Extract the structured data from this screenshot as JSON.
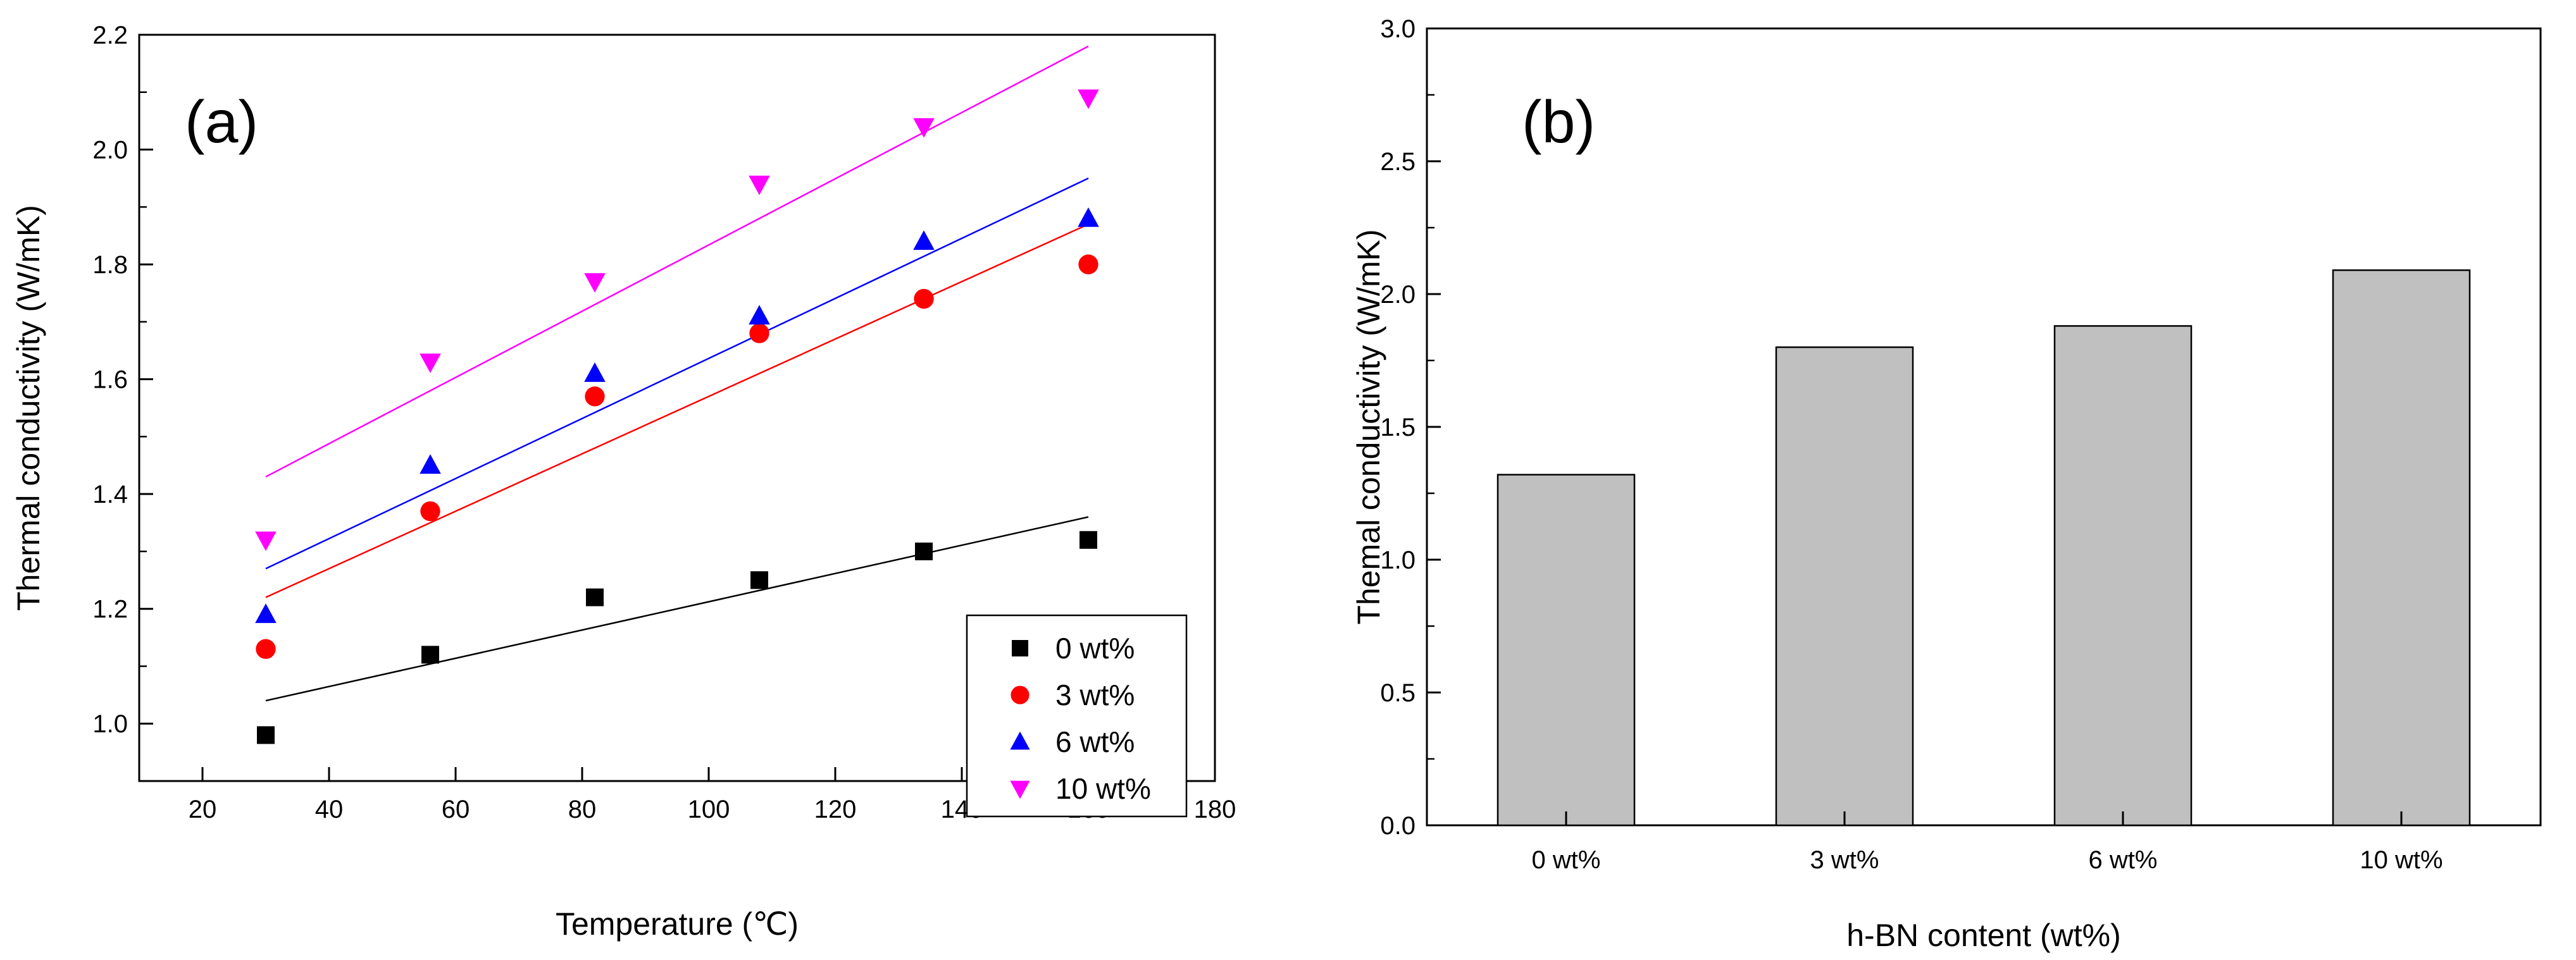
{
  "chart_data": [
    {
      "type": "scatter",
      "panel_label": "(a)",
      "title": "",
      "xlabel": "Temperature (℃)",
      "ylabel": "Thermal conductivity (W/mK)",
      "xlim": [
        10,
        180
      ],
      "ylim": [
        0.9,
        2.2
      ],
      "xticks": [
        20,
        40,
        60,
        80,
        100,
        120,
        140,
        160,
        180
      ],
      "yticks": [
        1.0,
        1.2,
        1.4,
        1.6,
        1.8,
        2.0,
        2.2
      ],
      "grid": false,
      "legend_position": "bottom-right",
      "x": [
        30,
        56,
        82,
        108,
        134,
        160
      ],
      "series": [
        {
          "name": "0 wt%",
          "marker": "square",
          "color": "#000000",
          "values": [
            0.98,
            1.12,
            1.22,
            1.25,
            1.3,
            1.32
          ],
          "fit": [
            1.04,
            1.36
          ]
        },
        {
          "name": "3 wt%",
          "marker": "circle",
          "color": "#ff0000",
          "values": [
            1.13,
            1.37,
            1.57,
            1.68,
            1.74,
            1.8
          ],
          "fit": [
            1.22,
            1.87
          ]
        },
        {
          "name": "6 wt%",
          "marker": "triangle-up",
          "color": "#0000ff",
          "values": [
            1.19,
            1.45,
            1.61,
            1.71,
            1.84,
            1.88
          ],
          "fit": [
            1.27,
            1.95
          ]
        },
        {
          "name": "10 wt%",
          "marker": "triangle-down",
          "color": "#ff00ff",
          "values": [
            1.32,
            1.63,
            1.77,
            1.94,
            2.04,
            2.09
          ],
          "fit": [
            1.43,
            2.18
          ]
        }
      ]
    },
    {
      "type": "bar",
      "panel_label": "(b)",
      "title": "",
      "xlabel": "h-BN content (wt%)",
      "ylabel": "Themal conductivity (W/mK)",
      "ylim": [
        0.0,
        3.0
      ],
      "yticks": [
        "0.0",
        "0.5",
        "1.0",
        "1.5",
        "2.0",
        "2.5",
        "3.0"
      ],
      "grid": false,
      "bar_color": "#c0c0c0",
      "categories": [
        "0 wt%",
        "3 wt%",
        "6 wt%",
        "10 wt%"
      ],
      "values": [
        1.32,
        1.8,
        1.88,
        2.09
      ]
    }
  ]
}
